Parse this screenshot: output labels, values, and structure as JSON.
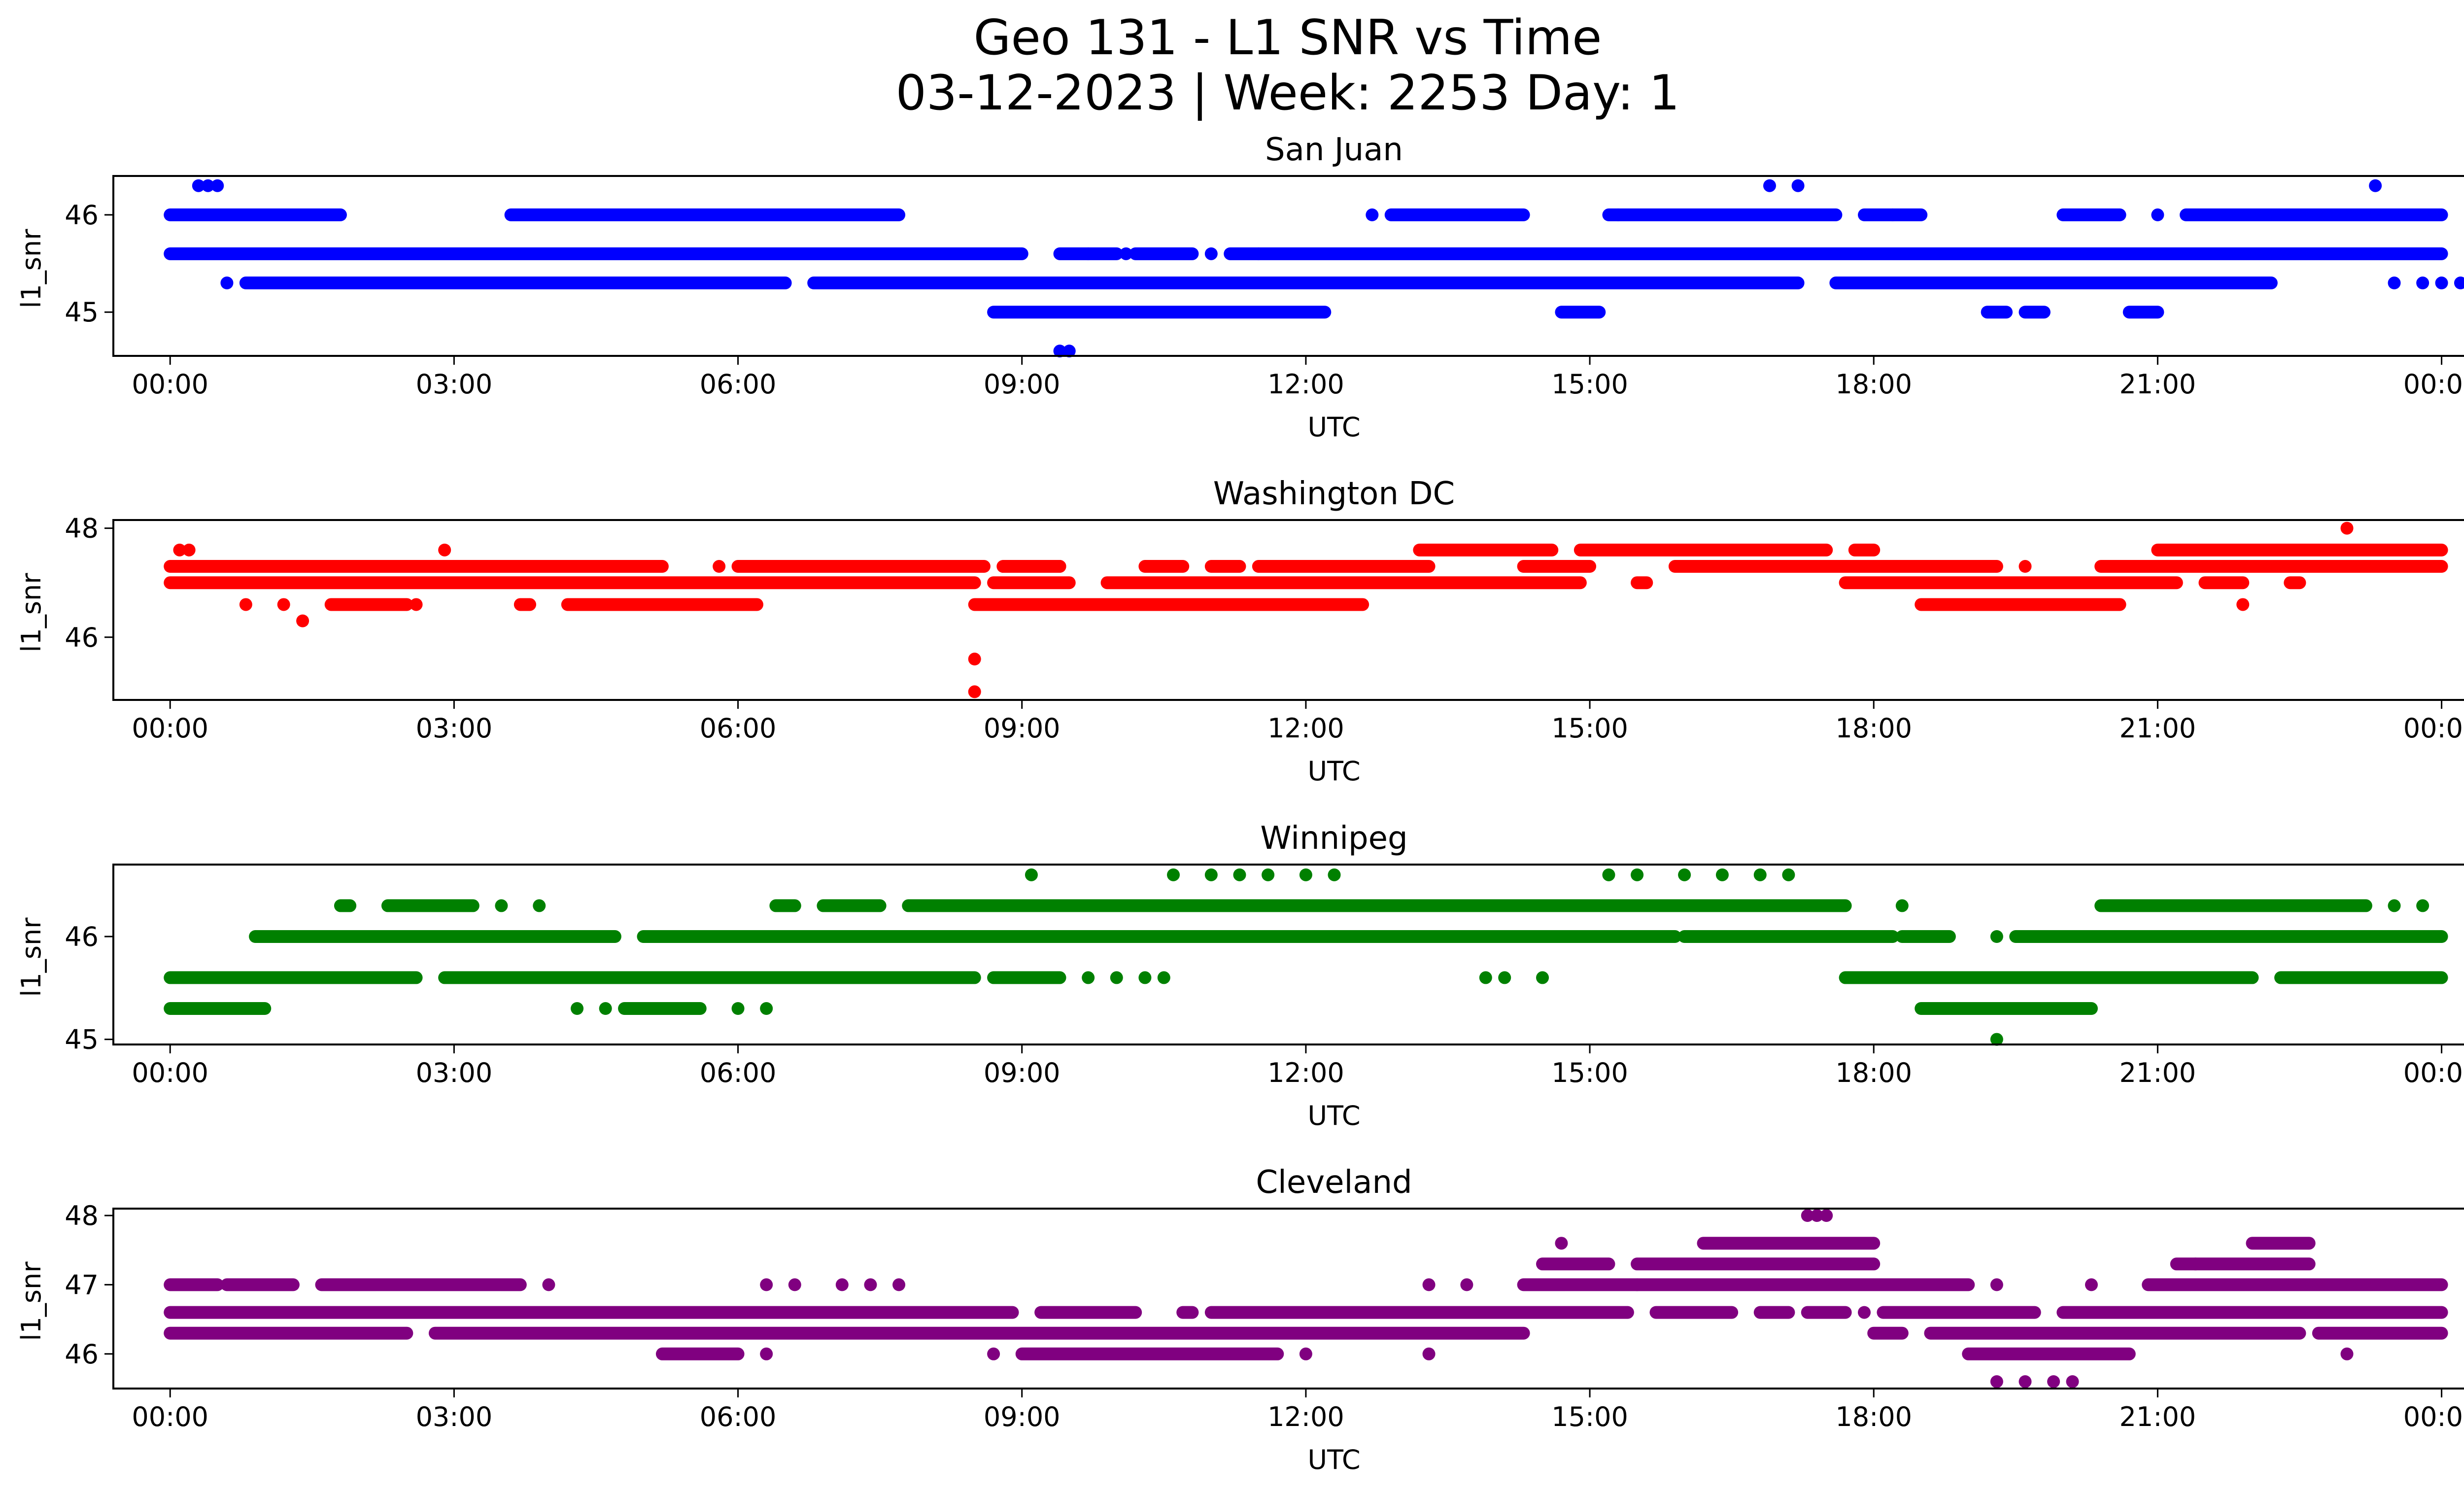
{
  "figure": {
    "title_line1": "Geo 131 - L1 SNR vs Time",
    "title_line2": "03-12-2023 | Week: 2253 Day: 1"
  },
  "chart_data": [
    {
      "type": "scatter",
      "title": "San Juan",
      "xlabel": "UTC",
      "ylabel": "l1_snr",
      "color": "#0000ff",
      "xlim": [
        -0.6,
        25.2
      ],
      "ylim": [
        44.55,
        46.4
      ],
      "x_ticks": [
        "00:00",
        "03:00",
        "06:00",
        "09:00",
        "12:00",
        "15:00",
        "18:00",
        "21:00",
        "00:00"
      ],
      "y_ticks": [
        45,
        46
      ],
      "bands": [
        {
          "y": 45.6,
          "segments": [
            [
              0,
              9.0
            ],
            [
              9.4,
              10.0
            ],
            [
              10.2,
              10.8
            ],
            [
              11.2,
              24.0
            ]
          ]
        },
        {
          "y": 45.3,
          "segments": [
            [
              0.8,
              6.5
            ],
            [
              6.8,
              17.2
            ],
            [
              17.6,
              22.2
            ]
          ]
        },
        {
          "y": 46.0,
          "segments": [
            [
              0,
              1.8
            ],
            [
              3.6,
              7.7
            ],
            [
              12.9,
              14.3
            ],
            [
              15.2,
              17.6
            ],
            [
              17.9,
              18.5
            ],
            [
              20.0,
              20.6
            ],
            [
              21.3,
              24.0
            ]
          ]
        },
        {
          "y": 45.0,
          "segments": [
            [
              8.7,
              12.2
            ],
            [
              14.7,
              15.1
            ],
            [
              19.2,
              19.4
            ],
            [
              19.6,
              19.8
            ],
            [
              20.7,
              21.0
            ]
          ]
        }
      ],
      "points": [
        [
          0.3,
          46.3
        ],
        [
          0.4,
          46.3
        ],
        [
          0.5,
          46.3
        ],
        [
          16.9,
          46.3
        ],
        [
          17.2,
          46.3
        ],
        [
          23.3,
          46.3
        ],
        [
          9.4,
          44.6
        ],
        [
          9.5,
          44.6
        ],
        [
          0.6,
          45.3
        ],
        [
          1.2,
          45.3
        ],
        [
          4.2,
          45.3
        ],
        [
          4.8,
          45.3
        ],
        [
          5.2,
          45.3
        ],
        [
          12.7,
          46.0
        ],
        [
          15.3,
          46.0
        ],
        [
          18.2,
          46.0
        ],
        [
          21.0,
          46.0
        ],
        [
          23.8,
          45.3
        ],
        [
          24.0,
          45.3
        ],
        [
          24.2,
          45.3
        ],
        [
          23.5,
          45.3
        ],
        [
          9.7,
          45.6
        ],
        [
          10.1,
          45.6
        ],
        [
          11.0,
          45.6
        ],
        [
          11.5,
          45.6
        ]
      ]
    },
    {
      "type": "scatter",
      "title": "Washington DC",
      "xlabel": "UTC",
      "ylabel": "l1_snr",
      "color": "#ff0000",
      "xlim": [
        -0.6,
        25.2
      ],
      "ylim": [
        44.85,
        48.15
      ],
      "x_ticks": [
        "00:00",
        "03:00",
        "06:00",
        "09:00",
        "12:00",
        "15:00",
        "18:00",
        "21:00",
        "00:00"
      ],
      "y_ticks": [
        46,
        48
      ],
      "bands": [
        {
          "y": 47.0,
          "segments": [
            [
              0,
              8.5
            ],
            [
              8.7,
              9.5
            ],
            [
              9.9,
              14.9
            ],
            [
              15.5,
              15.6
            ],
            [
              17.7,
              21.2
            ],
            [
              21.5,
              21.9
            ],
            [
              22.4,
              22.5
            ]
          ]
        },
        {
          "y": 47.3,
          "segments": [
            [
              0,
              5.2
            ],
            [
              6.0,
              8.6
            ],
            [
              8.8,
              9.4
            ],
            [
              10.3,
              10.7
            ],
            [
              11.0,
              11.3
            ],
            [
              11.5,
              13.3
            ],
            [
              14.3,
              15.0
            ],
            [
              15.9,
              19.3
            ],
            [
              20.4,
              24.0
            ]
          ]
        },
        {
          "y": 47.6,
          "segments": [
            [
              13.2,
              14.6
            ],
            [
              14.9,
              17.5
            ],
            [
              17.8,
              18.0
            ],
            [
              21.0,
              24.0
            ]
          ]
        },
        {
          "y": 46.6,
          "segments": [
            [
              1.7,
              2.5
            ],
            [
              3.7,
              3.8
            ],
            [
              4.2,
              6.2
            ],
            [
              8.5,
              12.6
            ],
            [
              18.5,
              20.6
            ]
          ]
        }
      ],
      "points": [
        [
          0.1,
          47.6
        ],
        [
          0.2,
          47.6
        ],
        [
          2.9,
          47.6
        ],
        [
          0.8,
          46.6
        ],
        [
          1.2,
          46.6
        ],
        [
          1.4,
          46.3
        ],
        [
          2.6,
          46.6
        ],
        [
          8.5,
          45.6
        ],
        [
          8.5,
          45.0
        ],
        [
          23.0,
          48.0
        ],
        [
          21.9,
          46.6
        ],
        [
          19.6,
          47.3
        ],
        [
          5.8,
          47.3
        ],
        [
          9.4,
          47.3
        ]
      ]
    },
    {
      "type": "scatter",
      "title": "Winnipeg",
      "xlabel": "UTC",
      "ylabel": "l1_snr",
      "color": "#008000",
      "xlim": [
        -0.6,
        25.2
      ],
      "ylim": [
        44.95,
        46.7
      ],
      "x_ticks": [
        "00:00",
        "03:00",
        "06:00",
        "09:00",
        "12:00",
        "15:00",
        "18:00",
        "21:00",
        "00:00"
      ],
      "y_ticks": [
        45,
        46
      ],
      "bands": [
        {
          "y": 46.0,
          "segments": [
            [
              0.9,
              4.7
            ],
            [
              5.0,
              15.9
            ],
            [
              16.0,
              18.2
            ],
            [
              18.3,
              18.8
            ],
            [
              19.5,
              24.0
            ]
          ]
        },
        {
          "y": 45.6,
          "segments": [
            [
              0,
              2.6
            ],
            [
              2.9,
              8.5
            ],
            [
              8.7,
              9.4
            ],
            [
              17.7,
              22.0
            ],
            [
              22.3,
              24.0
            ]
          ]
        },
        {
          "y": 46.3,
          "segments": [
            [
              1.8,
              1.9
            ],
            [
              2.3,
              3.2
            ],
            [
              6.4,
              6.6
            ],
            [
              6.9,
              7.5
            ],
            [
              7.8,
              17.7
            ],
            [
              20.4,
              23.2
            ]
          ]
        },
        {
          "y": 45.3,
          "segments": [
            [
              0,
              1.0
            ],
            [
              4.8,
              5.6
            ],
            [
              18.5,
              20.3
            ]
          ]
        }
      ],
      "points": [
        [
          9.1,
          46.6
        ],
        [
          10.6,
          46.6
        ],
        [
          11.0,
          46.6
        ],
        [
          11.3,
          46.6
        ],
        [
          11.6,
          46.6
        ],
        [
          12.0,
          46.6
        ],
        [
          12.3,
          46.6
        ],
        [
          15.2,
          46.6
        ],
        [
          15.5,
          46.6
        ],
        [
          16.0,
          46.6
        ],
        [
          16.4,
          46.6
        ],
        [
          16.8,
          46.6
        ],
        [
          17.1,
          46.6
        ],
        [
          4.3,
          45.3
        ],
        [
          4.6,
          45.3
        ],
        [
          6.0,
          45.3
        ],
        [
          6.3,
          45.3
        ],
        [
          9.7,
          45.6
        ],
        [
          10.0,
          45.6
        ],
        [
          10.3,
          45.6
        ],
        [
          10.5,
          45.6
        ],
        [
          13.9,
          45.6
        ],
        [
          14.1,
          45.6
        ],
        [
          14.5,
          45.6
        ],
        [
          19.3,
          45.0
        ],
        [
          19.3,
          46.0
        ],
        [
          18.3,
          46.3
        ],
        [
          23.5,
          46.3
        ],
        [
          23.8,
          46.3
        ],
        [
          3.5,
          46.3
        ],
        [
          3.9,
          46.3
        ]
      ]
    },
    {
      "type": "scatter",
      "title": "Cleveland",
      "xlabel": "UTC",
      "ylabel": "l1_snr",
      "color": "#800080",
      "xlim": [
        -0.6,
        25.2
      ],
      "ylim": [
        45.5,
        48.1
      ],
      "x_ticks": [
        "00:00",
        "03:00",
        "06:00",
        "09:00",
        "12:00",
        "15:00",
        "18:00",
        "21:00",
        "00:00"
      ],
      "y_ticks": [
        46,
        47,
        48
      ],
      "bands": [
        {
          "y": 46.6,
          "segments": [
            [
              0,
              8.9
            ],
            [
              9.2,
              10.2
            ],
            [
              10.7,
              10.8
            ],
            [
              11.0,
              15.4
            ],
            [
              15.7,
              16.5
            ],
            [
              16.8,
              17.1
            ],
            [
              17.3,
              17.7
            ],
            [
              18.1,
              19.7
            ],
            [
              20.0,
              24.0
            ]
          ]
        },
        {
          "y": 46.3,
          "segments": [
            [
              0,
              2.5
            ],
            [
              2.8,
              14.3
            ],
            [
              18.0,
              18.3
            ],
            [
              18.6,
              22.5
            ],
            [
              22.7,
              24.0
            ]
          ]
        },
        {
          "y": 47.0,
          "segments": [
            [
              0,
              0.5
            ],
            [
              0.6,
              1.3
            ],
            [
              1.6,
              3.7
            ],
            [
              14.3,
              19.0
            ],
            [
              20.9,
              24.0
            ]
          ]
        },
        {
          "y": 46.0,
          "segments": [
            [
              5.2,
              6.0
            ],
            [
              9.0,
              11.7
            ],
            [
              19.0,
              20.7
            ]
          ]
        },
        {
          "y": 47.3,
          "segments": [
            [
              14.5,
              15.2
            ],
            [
              15.5,
              18.0
            ],
            [
              21.2,
              22.6
            ]
          ]
        },
        {
          "y": 47.6,
          "segments": [
            [
              16.2,
              18.0
            ],
            [
              22.0,
              22.6
            ]
          ]
        }
      ],
      "points": [
        [
          17.3,
          48.0
        ],
        [
          17.4,
          48.0
        ],
        [
          17.5,
          48.0
        ],
        [
          14.7,
          47.6
        ],
        [
          21.4,
          47.3
        ],
        [
          6.3,
          47.0
        ],
        [
          6.6,
          47.0
        ],
        [
          7.1,
          47.0
        ],
        [
          7.4,
          47.0
        ],
        [
          7.7,
          47.0
        ],
        [
          4.0,
          47.0
        ],
        [
          13.3,
          47.0
        ],
        [
          13.7,
          47.0
        ],
        [
          19.3,
          47.0
        ],
        [
          20.3,
          47.0
        ],
        [
          6.3,
          46.0
        ],
        [
          8.7,
          46.0
        ],
        [
          12.0,
          46.0
        ],
        [
          13.3,
          46.0
        ],
        [
          23.0,
          46.0
        ],
        [
          19.3,
          45.6
        ],
        [
          19.6,
          45.6
        ],
        [
          19.9,
          45.6
        ],
        [
          20.1,
          45.6
        ],
        [
          17.9,
          46.6
        ],
        [
          15.5,
          47.0
        ]
      ]
    }
  ]
}
